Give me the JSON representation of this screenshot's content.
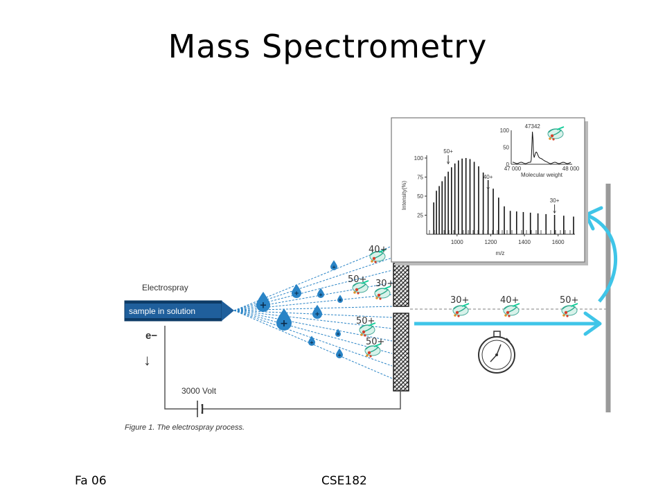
{
  "slide": {
    "title": "Mass Spectrometry",
    "footer_left": "Fa 06",
    "footer_center": "CSE182"
  },
  "figure": {
    "electrospray_label": "Electrospray",
    "sample_label": "sample in solution",
    "electron_label": "e−",
    "electron_arrow": "↓",
    "voltage_label": "3000 Volt",
    "caption": "Figure 1. The electrospray process.",
    "droplet_sign": "+",
    "spray_charges": [
      "40+",
      "50+",
      "30+",
      "50+",
      "50+"
    ],
    "flight_charges": [
      "30+",
      "40+",
      "50+"
    ],
    "stopwatch_icon": "stopwatch-icon",
    "colors": {
      "spray": "#2a84c6",
      "flight_arrow": "#3fc5e8",
      "plate": "#9a9a9a"
    }
  },
  "spectrum": {
    "ylabel": "Intensity(%)",
    "xlabel": "m/z",
    "yticks": [
      "25",
      "50",
      "75",
      "100"
    ],
    "xticks": [
      "1000",
      "1200",
      "1400",
      "1600"
    ],
    "peak_labels": [
      "50+",
      "40+",
      "30+"
    ],
    "inset": {
      "peak_label": "47342",
      "yticks": [
        "0",
        "50",
        "100"
      ],
      "xticks": [
        "47 000",
        "48 000"
      ],
      "xlabel": "Molecular weight"
    }
  }
}
